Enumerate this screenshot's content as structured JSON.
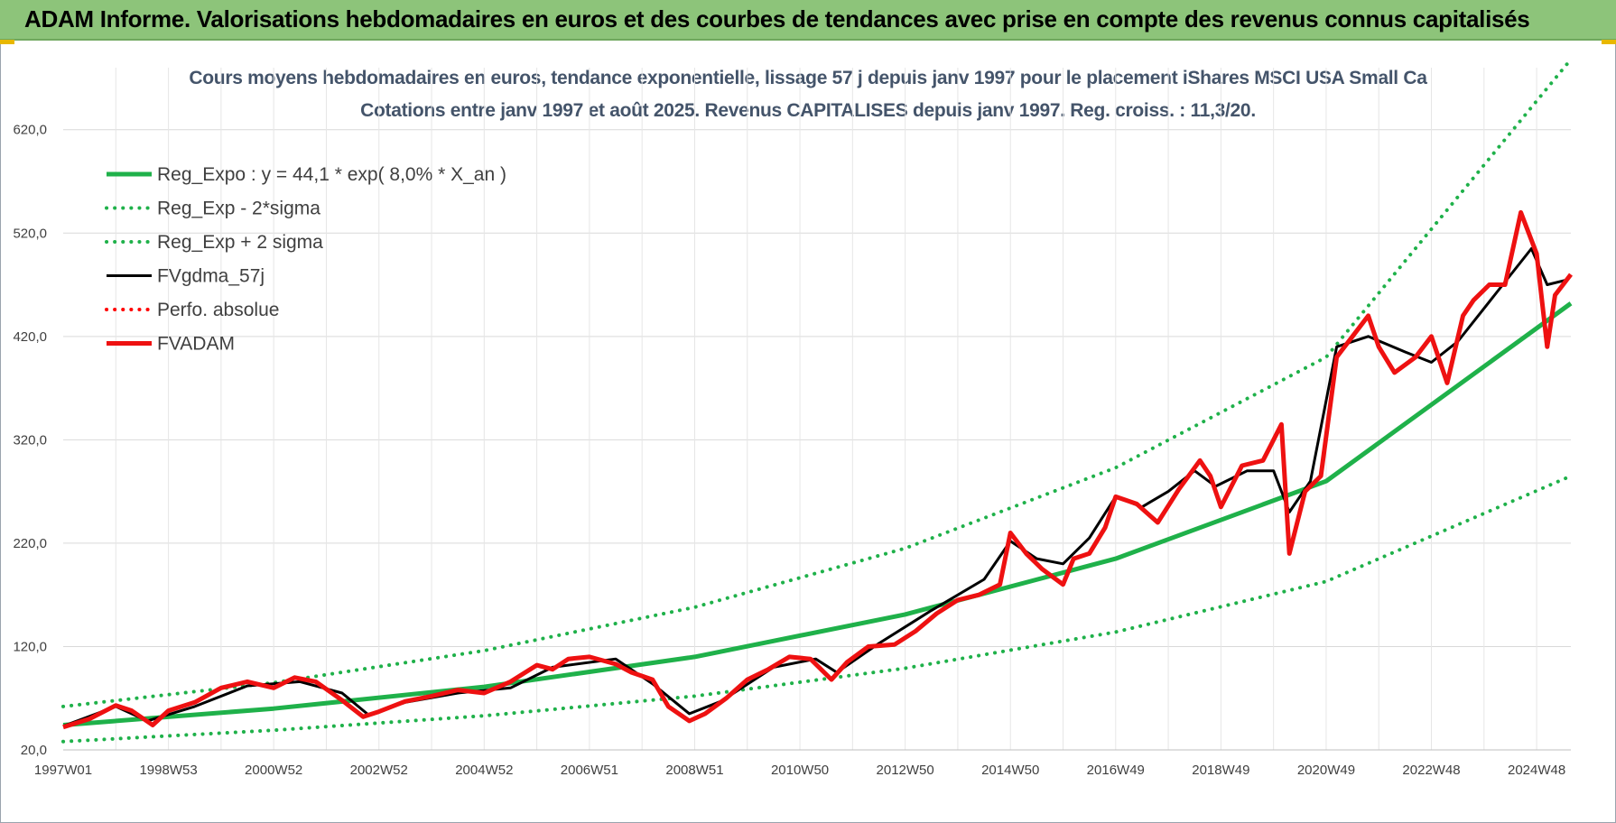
{
  "header": {
    "title": "ADAM Informe. Valorisations hebdomadaires en euros et des courbes de tendances avec prise en compte des revenus connus capitalisés"
  },
  "chart_data": {
    "type": "line",
    "title": "Cours moyens hebdomadaires en euros, tendance exponentielle, lissage 57 j depuis janv 1997 pour le placement iShares MSCI USA Small Ca",
    "subtitle": "Cotations entre janv 1997 et août 2025. Revenus CAPITALISES depuis janv 1997. Reg. croiss. : 11,3/20.",
    "xlabel": "",
    "ylabel": "",
    "ylim": [
      20,
      680
    ],
    "x_range_years": [
      1997.0,
      2025.65
    ],
    "y_ticks": [
      "20,0",
      "120,0",
      "220,0",
      "320,0",
      "420,0",
      "520,0",
      "620,0"
    ],
    "x_ticks": [
      {
        "year": 1997.0,
        "label": "1997W01"
      },
      {
        "year": 1999.0,
        "label": "1998W53"
      },
      {
        "year": 2001.0,
        "label": "2000W52"
      },
      {
        "year": 2003.0,
        "label": "2002W52"
      },
      {
        "year": 2005.0,
        "label": "2004W52"
      },
      {
        "year": 2007.0,
        "label": "2006W51"
      },
      {
        "year": 2009.0,
        "label": "2008W51"
      },
      {
        "year": 2011.0,
        "label": "2010W50"
      },
      {
        "year": 2013.0,
        "label": "2012W50"
      },
      {
        "year": 2015.0,
        "label": "2014W50"
      },
      {
        "year": 2017.0,
        "label": "2016W49"
      },
      {
        "year": 2019.0,
        "label": "2018W49"
      },
      {
        "year": 2021.0,
        "label": "2020W49"
      },
      {
        "year": 2023.0,
        "label": "2022W48"
      },
      {
        "year": 2025.0,
        "label": "2024W48"
      }
    ],
    "legend_position": "top-left",
    "series": [
      {
        "name": "Reg_Expo : y = 44,1 * exp( 8,0% *  X_an )",
        "style": "solid-thick",
        "color": "#1fb14a",
        "x": [
          1997.0,
          2001.0,
          2005.0,
          2009.0,
          2013.0,
          2017.0,
          2021.0,
          2025.65
        ],
        "values": [
          44,
          60,
          81,
          110,
          151,
          205,
          280,
          452
        ]
      },
      {
        "name": "Reg_Exp - 2*sigma",
        "style": "dotted",
        "color": "#1fb14a",
        "x": [
          1997.0,
          2001.0,
          2005.0,
          2009.0,
          2013.0,
          2017.0,
          2021.0,
          2025.65
        ],
        "values": [
          28,
          39,
          53,
          72,
          99,
          134,
          183,
          285
        ]
      },
      {
        "name": "Reg_Exp + 2 sigma",
        "style": "dotted",
        "color": "#1fb14a",
        "x": [
          1997.0,
          2001.0,
          2005.0,
          2009.0,
          2013.0,
          2017.0,
          2021.0,
          2025.65
        ],
        "values": [
          62,
          85,
          116,
          158,
          215,
          293,
          400,
          688
        ]
      },
      {
        "name": "FVgdma_57j",
        "style": "solid",
        "color": "#000000",
        "x": [
          1997.0,
          1998.0,
          1998.6,
          1999.5,
          2000.5,
          2001.5,
          2002.3,
          2002.8,
          2003.5,
          2004.5,
          2005.5,
          2006.3,
          2007.5,
          2008.2,
          2008.9,
          2009.5,
          2010.5,
          2011.3,
          2011.7,
          2012.5,
          2013.5,
          2014.5,
          2015.0,
          2015.5,
          2016.0,
          2016.5,
          2017.0,
          2017.5,
          2018.0,
          2018.5,
          2018.9,
          2019.5,
          2020.0,
          2020.3,
          2020.7,
          2021.2,
          2021.8,
          2022.5,
          2023.0,
          2023.5,
          2024.2,
          2024.9,
          2025.2,
          2025.6
        ],
        "values": [
          43,
          62,
          48,
          62,
          82,
          86,
          75,
          54,
          66,
          75,
          80,
          100,
          108,
          84,
          55,
          67,
          100,
          108,
          95,
          123,
          155,
          185,
          222,
          205,
          200,
          225,
          265,
          255,
          270,
          290,
          275,
          290,
          290,
          250,
          280,
          410,
          420,
          405,
          395,
          415,
          460,
          505,
          470,
          475
        ]
      },
      {
        "name": "Perfo. absolue",
        "style": "dotted",
        "color": "#ff0000",
        "x": [],
        "values": []
      },
      {
        "name": "FVADAM",
        "style": "solid-thick",
        "color": "#ee1111",
        "x": [
          1997.0,
          1997.5,
          1998.0,
          1998.3,
          1998.7,
          1999.0,
          1999.5,
          2000.0,
          2000.5,
          2001.0,
          2001.4,
          2001.8,
          2002.3,
          2002.7,
          2003.0,
          2003.5,
          2004.0,
          2004.5,
          2005.0,
          2005.5,
          2006.0,
          2006.3,
          2006.6,
          2007.0,
          2007.5,
          2007.8,
          2008.2,
          2008.5,
          2008.9,
          2009.2,
          2009.6,
          2010.0,
          2010.4,
          2010.8,
          2011.2,
          2011.6,
          2011.9,
          2012.3,
          2012.8,
          2013.2,
          2013.6,
          2014.0,
          2014.4,
          2014.8,
          2015.0,
          2015.3,
          2015.6,
          2016.0,
          2016.2,
          2016.5,
          2016.8,
          2017.0,
          2017.4,
          2017.8,
          2018.2,
          2018.6,
          2018.8,
          2019.0,
          2019.4,
          2019.8,
          2020.0,
          2020.15,
          2020.3,
          2020.6,
          2020.9,
          2021.2,
          2021.5,
          2021.8,
          2022.0,
          2022.3,
          2022.7,
          2023.0,
          2023.3,
          2023.6,
          2023.8,
          2024.1,
          2024.4,
          2024.7,
          2025.0,
          2025.2,
          2025.35,
          2025.5,
          2025.65
        ],
        "values": [
          42,
          50,
          63,
          58,
          44,
          58,
          66,
          80,
          86,
          80,
          90,
          86,
          68,
          52,
          57,
          67,
          72,
          78,
          75,
          86,
          102,
          98,
          108,
          110,
          103,
          95,
          88,
          62,
          48,
          55,
          70,
          88,
          98,
          110,
          108,
          88,
          105,
          120,
          122,
          135,
          152,
          165,
          170,
          180,
          230,
          210,
          195,
          180,
          205,
          210,
          235,
          265,
          258,
          240,
          272,
          300,
          285,
          255,
          295,
          300,
          320,
          335,
          210,
          270,
          285,
          400,
          420,
          440,
          410,
          385,
          400,
          420,
          375,
          440,
          455,
          470,
          470,
          540,
          500,
          410,
          460,
          470,
          480
        ]
      }
    ]
  }
}
